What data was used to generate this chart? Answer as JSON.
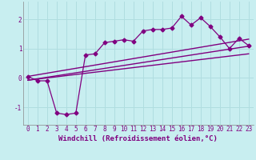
{
  "title": "",
  "xlabel": "Windchill (Refroidissement éolien,°C)",
  "ylabel": "",
  "background_color": "#c8eef0",
  "line_color": "#800080",
  "grid_color": "#b0dde0",
  "xlim": [
    -0.5,
    23.5
  ],
  "ylim": [
    -1.6,
    2.6
  ],
  "xticks": [
    0,
    1,
    2,
    3,
    4,
    5,
    6,
    7,
    8,
    9,
    10,
    11,
    12,
    13,
    14,
    15,
    16,
    17,
    18,
    19,
    20,
    21,
    22,
    23
  ],
  "yticks": [
    -1,
    0,
    1,
    2
  ],
  "series": {
    "line1": {
      "x": [
        0,
        1,
        2,
        3,
        4,
        5,
        6,
        7,
        8,
        9,
        10,
        11,
        12,
        13,
        14,
        15,
        16,
        17,
        18,
        19,
        20,
        21,
        22,
        23
      ],
      "y": [
        0.05,
        -0.1,
        -0.1,
        -1.2,
        -1.25,
        -1.2,
        0.78,
        0.82,
        1.2,
        1.25,
        1.3,
        1.25,
        1.6,
        1.65,
        1.65,
        1.7,
        2.1,
        1.8,
        2.05,
        1.75,
        1.4,
        1.0,
        1.35,
        1.1
      ],
      "marker": "D",
      "markersize": 2.5,
      "linewidth": 0.9
    },
    "line2": {
      "x": [
        0,
        23
      ],
      "y": [
        -0.08,
        1.08
      ],
      "linewidth": 1.0
    },
    "line3": {
      "x": [
        0,
        23
      ],
      "y": [
        -0.08,
        0.82
      ],
      "linewidth": 1.0
    },
    "line4": {
      "x": [
        0,
        23
      ],
      "y": [
        0.05,
        1.32
      ],
      "linewidth": 1.0
    }
  },
  "xlabel_fontsize": 6.5,
  "tick_fontsize": 5.5
}
